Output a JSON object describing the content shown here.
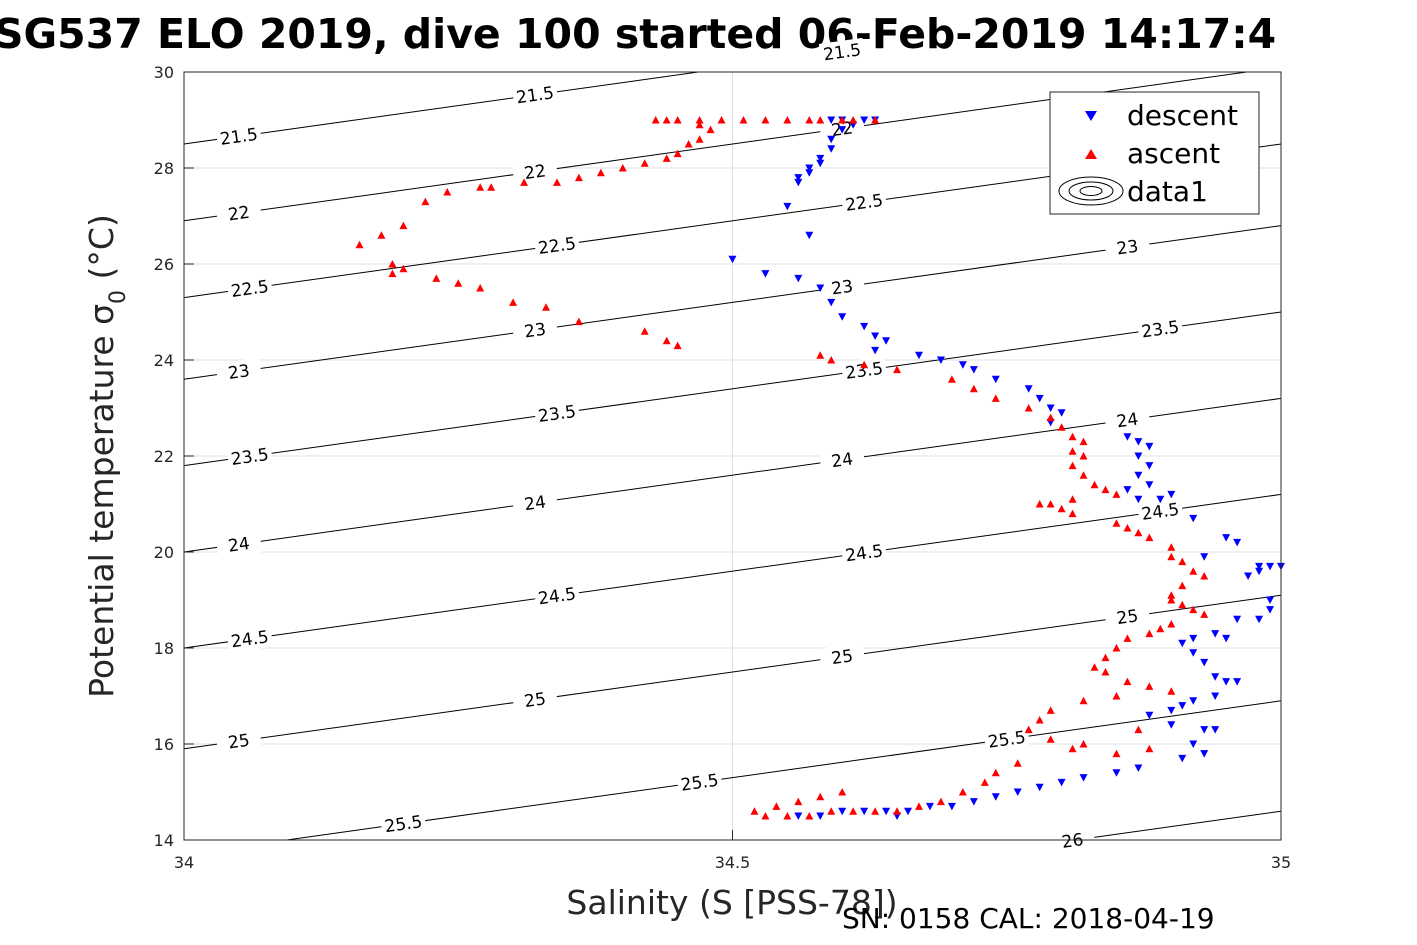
{
  "chart_data": {
    "type": "scatter",
    "title": "SG537 ELO 2019, dive 100 started 06-Feb-2019 14:17:4",
    "xlabel": "Salinity (S [PSS-78])",
    "ylabel_main": "Potential temperature σ",
    "ylabel_sub": "0",
    "ylabel_unit": " (°C)",
    "footer": "SN: 0158  CAL: 2018-04-19",
    "xlim": [
      34,
      35
    ],
    "ylim": [
      14,
      30
    ],
    "xticks": [
      "34",
      "34.5",
      "35"
    ],
    "xtick_values": [
      34,
      34.5,
      35
    ],
    "yticks": [
      "14",
      "16",
      "18",
      "20",
      "22",
      "24",
      "26",
      "28",
      "30"
    ],
    "ytick_values": [
      14,
      16,
      18,
      20,
      22,
      24,
      26,
      28,
      30
    ],
    "grid": true,
    "legend_position": "top-right",
    "legend": [
      {
        "name": "descent",
        "marker": "triangle-down",
        "color": "#0000ff"
      },
      {
        "name": "ascent",
        "marker": "triangle-up",
        "color": "#ff0000"
      },
      {
        "name": "data1",
        "marker": "contour",
        "color": "#000000"
      }
    ],
    "series": [
      {
        "name": "descent",
        "color": "#0000ff",
        "marker": "triangle-down",
        "points": [
          [
            34.59,
            29.0
          ],
          [
            34.6,
            29.0
          ],
          [
            34.62,
            29.0
          ],
          [
            34.63,
            29.0
          ],
          [
            34.61,
            28.9
          ],
          [
            34.6,
            28.8
          ],
          [
            34.59,
            28.6
          ],
          [
            34.59,
            28.4
          ],
          [
            34.58,
            28.2
          ],
          [
            34.58,
            28.1
          ],
          [
            34.57,
            28.0
          ],
          [
            34.57,
            27.9
          ],
          [
            34.56,
            27.8
          ],
          [
            34.56,
            27.7
          ],
          [
            34.55,
            27.2
          ],
          [
            34.57,
            26.6
          ],
          [
            34.5,
            26.1
          ],
          [
            34.53,
            25.8
          ],
          [
            34.56,
            25.7
          ],
          [
            34.58,
            25.5
          ],
          [
            34.59,
            25.2
          ],
          [
            34.6,
            24.9
          ],
          [
            34.62,
            24.7
          ],
          [
            34.63,
            24.5
          ],
          [
            34.64,
            24.4
          ],
          [
            34.63,
            24.2
          ],
          [
            34.67,
            24.1
          ],
          [
            34.69,
            24.0
          ],
          [
            34.71,
            23.9
          ],
          [
            34.72,
            23.8
          ],
          [
            34.74,
            23.6
          ],
          [
            34.77,
            23.4
          ],
          [
            34.78,
            23.2
          ],
          [
            34.79,
            23.0
          ],
          [
            34.8,
            22.9
          ],
          [
            34.79,
            22.7
          ],
          [
            34.86,
            22.4
          ],
          [
            34.87,
            22.3
          ],
          [
            34.88,
            22.2
          ],
          [
            34.87,
            22.0
          ],
          [
            34.88,
            21.8
          ],
          [
            34.87,
            21.6
          ],
          [
            34.88,
            21.4
          ],
          [
            34.86,
            21.3
          ],
          [
            34.87,
            21.1
          ],
          [
            34.89,
            21.1
          ],
          [
            34.9,
            21.2
          ],
          [
            34.92,
            20.7
          ],
          [
            34.95,
            20.3
          ],
          [
            34.96,
            20.2
          ],
          [
            34.93,
            19.9
          ],
          [
            34.97,
            19.5
          ],
          [
            34.98,
            19.6
          ],
          [
            34.98,
            19.7
          ],
          [
            34.99,
            19.7
          ],
          [
            35.0,
            19.7
          ],
          [
            34.99,
            19.0
          ],
          [
            34.99,
            18.8
          ],
          [
            34.98,
            18.6
          ],
          [
            34.96,
            18.6
          ],
          [
            34.94,
            18.3
          ],
          [
            34.95,
            18.2
          ],
          [
            34.92,
            18.2
          ],
          [
            34.91,
            18.1
          ],
          [
            34.92,
            17.9
          ],
          [
            34.93,
            17.7
          ],
          [
            34.94,
            17.4
          ],
          [
            34.95,
            17.3
          ],
          [
            34.96,
            17.3
          ],
          [
            34.94,
            17.0
          ],
          [
            34.92,
            16.9
          ],
          [
            34.91,
            16.8
          ],
          [
            34.9,
            16.7
          ],
          [
            34.88,
            16.6
          ],
          [
            34.9,
            16.4
          ],
          [
            34.93,
            16.3
          ],
          [
            34.94,
            16.3
          ],
          [
            34.92,
            16.0
          ],
          [
            34.93,
            15.8
          ],
          [
            34.91,
            15.7
          ],
          [
            34.87,
            15.5
          ],
          [
            34.85,
            15.4
          ],
          [
            34.82,
            15.3
          ],
          [
            34.8,
            15.2
          ],
          [
            34.78,
            15.1
          ],
          [
            34.76,
            15.0
          ],
          [
            34.74,
            14.9
          ],
          [
            34.72,
            14.8
          ],
          [
            34.7,
            14.7
          ],
          [
            34.68,
            14.7
          ],
          [
            34.66,
            14.6
          ],
          [
            34.64,
            14.6
          ],
          [
            34.62,
            14.6
          ],
          [
            34.6,
            14.6
          ],
          [
            34.58,
            14.5
          ],
          [
            34.56,
            14.5
          ],
          [
            34.65,
            14.5
          ]
        ]
      },
      {
        "name": "ascent",
        "color": "#ff0000",
        "marker": "triangle-up",
        "points": [
          [
            34.43,
            29.0
          ],
          [
            34.44,
            29.0
          ],
          [
            34.45,
            29.0
          ],
          [
            34.47,
            29.0
          ],
          [
            34.49,
            29.0
          ],
          [
            34.51,
            29.0
          ],
          [
            34.53,
            29.0
          ],
          [
            34.55,
            29.0
          ],
          [
            34.57,
            29.0
          ],
          [
            34.58,
            29.0
          ],
          [
            34.6,
            29.0
          ],
          [
            34.61,
            29.0
          ],
          [
            34.63,
            29.0
          ],
          [
            34.47,
            28.9
          ],
          [
            34.48,
            28.8
          ],
          [
            34.47,
            28.6
          ],
          [
            34.46,
            28.5
          ],
          [
            34.45,
            28.3
          ],
          [
            34.44,
            28.2
          ],
          [
            34.42,
            28.1
          ],
          [
            34.4,
            28.0
          ],
          [
            34.38,
            27.9
          ],
          [
            34.36,
            27.8
          ],
          [
            34.34,
            27.7
          ],
          [
            34.31,
            27.7
          ],
          [
            34.28,
            27.6
          ],
          [
            34.27,
            27.6
          ],
          [
            34.24,
            27.5
          ],
          [
            34.22,
            27.3
          ],
          [
            34.2,
            26.8
          ],
          [
            34.18,
            26.6
          ],
          [
            34.16,
            26.4
          ],
          [
            34.19,
            26.0
          ],
          [
            34.2,
            25.9
          ],
          [
            34.19,
            25.8
          ],
          [
            34.23,
            25.7
          ],
          [
            34.25,
            25.6
          ],
          [
            34.27,
            25.5
          ],
          [
            34.3,
            25.2
          ],
          [
            34.33,
            25.1
          ],
          [
            34.36,
            24.8
          ],
          [
            34.42,
            24.6
          ],
          [
            34.44,
            24.4
          ],
          [
            34.45,
            24.3
          ],
          [
            34.58,
            24.1
          ],
          [
            34.59,
            24.0
          ],
          [
            34.62,
            23.9
          ],
          [
            34.65,
            23.8
          ],
          [
            34.7,
            23.6
          ],
          [
            34.72,
            23.4
          ],
          [
            34.74,
            23.2
          ],
          [
            34.77,
            23.0
          ],
          [
            34.79,
            22.8
          ],
          [
            34.8,
            22.6
          ],
          [
            34.81,
            22.4
          ],
          [
            34.82,
            22.3
          ],
          [
            34.81,
            22.1
          ],
          [
            34.82,
            22.0
          ],
          [
            34.81,
            21.8
          ],
          [
            34.82,
            21.6
          ],
          [
            34.83,
            21.4
          ],
          [
            34.84,
            21.3
          ],
          [
            34.85,
            21.2
          ],
          [
            34.81,
            21.1
          ],
          [
            34.79,
            21.0
          ],
          [
            34.78,
            21.0
          ],
          [
            34.8,
            20.9
          ],
          [
            34.81,
            20.8
          ],
          [
            34.85,
            20.6
          ],
          [
            34.86,
            20.5
          ],
          [
            34.87,
            20.4
          ],
          [
            34.88,
            20.3
          ],
          [
            34.9,
            20.1
          ],
          [
            34.9,
            19.9
          ],
          [
            34.91,
            19.8
          ],
          [
            34.92,
            19.6
          ],
          [
            34.93,
            19.5
          ],
          [
            34.91,
            19.3
          ],
          [
            34.9,
            19.1
          ],
          [
            34.9,
            19.0
          ],
          [
            34.91,
            18.9
          ],
          [
            34.92,
            18.8
          ],
          [
            34.93,
            18.7
          ],
          [
            34.9,
            18.5
          ],
          [
            34.89,
            18.4
          ],
          [
            34.88,
            18.3
          ],
          [
            34.86,
            18.2
          ],
          [
            34.85,
            18.0
          ],
          [
            34.84,
            17.8
          ],
          [
            34.83,
            17.6
          ],
          [
            34.84,
            17.5
          ],
          [
            34.86,
            17.3
          ],
          [
            34.88,
            17.2
          ],
          [
            34.9,
            17.1
          ],
          [
            34.85,
            17.0
          ],
          [
            34.82,
            16.9
          ],
          [
            34.79,
            16.7
          ],
          [
            34.78,
            16.5
          ],
          [
            34.77,
            16.3
          ],
          [
            34.79,
            16.1
          ],
          [
            34.82,
            16.0
          ],
          [
            34.85,
            15.8
          ],
          [
            34.88,
            15.9
          ],
          [
            34.87,
            16.3
          ],
          [
            34.81,
            15.9
          ],
          [
            34.76,
            15.6
          ],
          [
            34.74,
            15.4
          ],
          [
            34.73,
            15.2
          ],
          [
            34.71,
            15.0
          ],
          [
            34.69,
            14.8
          ],
          [
            34.67,
            14.7
          ],
          [
            34.65,
            14.6
          ],
          [
            34.63,
            14.6
          ],
          [
            34.61,
            14.6
          ],
          [
            34.59,
            14.6
          ],
          [
            34.57,
            14.5
          ],
          [
            34.55,
            14.5
          ],
          [
            34.53,
            14.5
          ],
          [
            34.52,
            14.6
          ],
          [
            34.54,
            14.7
          ],
          [
            34.56,
            14.8
          ],
          [
            34.58,
            14.9
          ],
          [
            34.6,
            15.0
          ]
        ]
      }
    ],
    "contours": [
      {
        "level": "21.5",
        "y0": 28.5,
        "labels": [
          [
            34.05,
            "21.5"
          ],
          [
            34.32,
            "21.5"
          ],
          [
            34.6,
            "21.5"
          ]
        ]
      },
      {
        "level": "22",
        "y0": 26.9,
        "labels": [
          [
            34.05,
            "22"
          ],
          [
            34.32,
            "22"
          ],
          [
            34.6,
            "22"
          ]
        ]
      },
      {
        "level": "22.5",
        "y0": 25.3,
        "labels": [
          [
            34.06,
            "22.5"
          ],
          [
            34.34,
            "22.5"
          ],
          [
            34.62,
            "22.5"
          ]
        ]
      },
      {
        "level": "23",
        "y0": 23.6,
        "labels": [
          [
            34.05,
            "23"
          ],
          [
            34.32,
            "23"
          ],
          [
            34.6,
            "23"
          ],
          [
            34.86,
            "23"
          ]
        ]
      },
      {
        "level": "23.5",
        "y0": 21.8,
        "labels": [
          [
            34.06,
            "23.5"
          ],
          [
            34.34,
            "23.5"
          ],
          [
            34.62,
            "23.5"
          ],
          [
            34.89,
            "23.5"
          ]
        ]
      },
      {
        "level": "24",
        "y0": 20.0,
        "labels": [
          [
            34.05,
            "24"
          ],
          [
            34.32,
            "24"
          ],
          [
            34.6,
            "24"
          ],
          [
            34.86,
            "24"
          ]
        ]
      },
      {
        "level": "24.5",
        "y0": 18.0,
        "labels": [
          [
            34.06,
            "24.5"
          ],
          [
            34.34,
            "24.5"
          ],
          [
            34.62,
            "24.5"
          ],
          [
            34.89,
            "24.5"
          ]
        ]
      },
      {
        "level": "25",
        "y0": 15.9,
        "labels": [
          [
            34.05,
            "25"
          ],
          [
            34.32,
            "25"
          ],
          [
            34.6,
            "25"
          ],
          [
            34.86,
            "25"
          ]
        ]
      },
      {
        "level": "25.5",
        "y0": 13.7,
        "labels": [
          [
            34.2,
            "25.5"
          ],
          [
            34.47,
            "25.5"
          ],
          [
            34.75,
            "25.5"
          ]
        ]
      },
      {
        "level": "26",
        "y0": 11.4,
        "labels": [
          [
            34.81,
            "26"
          ]
        ]
      }
    ]
  }
}
